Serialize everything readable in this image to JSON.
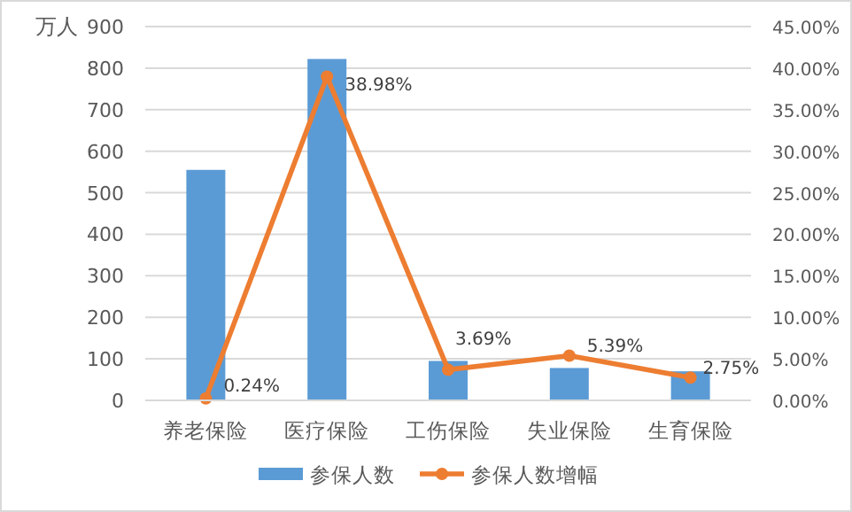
{
  "chart_data": {
    "type": "bar",
    "ylabel": "万人",
    "categories": [
      "养老保险",
      "医疗保险",
      "工伤保险",
      "失业保险",
      "生育保险"
    ],
    "series": [
      {
        "name": "参保人数",
        "color": "#5b9bd5",
        "values": [
          555,
          822,
          95,
          78,
          70
        ]
      },
      {
        "name": "参保人数增幅",
        "type": "line",
        "axis": "y2",
        "color": "#ed7d31",
        "marker": "circle",
        "values": [
          0.24,
          38.98,
          3.69,
          5.39,
          2.75
        ],
        "value_labels": [
          "0.24%",
          "38.98%",
          "3.69%",
          "5.39%",
          "2.75%"
        ]
      }
    ],
    "ylim": [
      0,
      900
    ],
    "yticks": [
      0,
      100,
      200,
      300,
      400,
      500,
      600,
      700,
      800,
      900
    ],
    "y2lim": [
      0,
      45
    ],
    "y2ticks": [
      {
        "value": 0,
        "label": "0.00%"
      },
      {
        "value": 5,
        "label": "5.00%"
      },
      {
        "value": 10,
        "label": "10.00%"
      },
      {
        "value": 15,
        "label": "15.00%"
      },
      {
        "value": 20,
        "label": "20.00%"
      },
      {
        "value": 25,
        "label": "25.00%"
      },
      {
        "value": 30,
        "label": "30.00%"
      },
      {
        "value": 35,
        "label": "35.00%"
      },
      {
        "value": 40,
        "label": "40.00%"
      },
      {
        "value": 45,
        "label": "45.00%"
      }
    ],
    "grid": "y",
    "legend": "bottom"
  }
}
